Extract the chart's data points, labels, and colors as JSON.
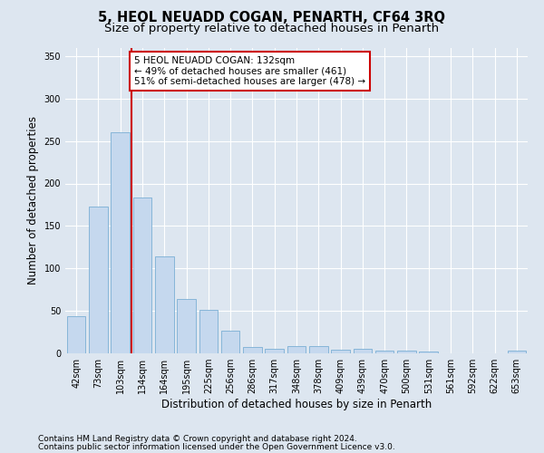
{
  "title": "5, HEOL NEUADD COGAN, PENARTH, CF64 3RQ",
  "subtitle": "Size of property relative to detached houses in Penarth",
  "xlabel": "Distribution of detached houses by size in Penarth",
  "ylabel": "Number of detached properties",
  "categories": [
    "42sqm",
    "73sqm",
    "103sqm",
    "134sqm",
    "164sqm",
    "195sqm",
    "225sqm",
    "256sqm",
    "286sqm",
    "317sqm",
    "348sqm",
    "378sqm",
    "409sqm",
    "439sqm",
    "470sqm",
    "500sqm",
    "531sqm",
    "561sqm",
    "592sqm",
    "622sqm",
    "653sqm"
  ],
  "values": [
    44,
    173,
    260,
    183,
    114,
    64,
    51,
    27,
    8,
    5,
    9,
    9,
    4,
    5,
    3,
    3,
    2,
    0,
    0,
    0,
    3
  ],
  "bar_color": "#c5d8ee",
  "bar_edge_color": "#7aafd4",
  "vline_x_index": 3,
  "vline_color": "#cc0000",
  "annotation_text": "5 HEOL NEUADD COGAN: 132sqm\n← 49% of detached houses are smaller (461)\n51% of semi-detached houses are larger (478) →",
  "annotation_box_color": "#ffffff",
  "annotation_box_edge": "#cc0000",
  "ylim": [
    0,
    360
  ],
  "yticks": [
    0,
    50,
    100,
    150,
    200,
    250,
    300,
    350
  ],
  "footnote1": "Contains HM Land Registry data © Crown copyright and database right 2024.",
  "footnote2": "Contains public sector information licensed under the Open Government Licence v3.0.",
  "bg_color": "#dde6f0",
  "plot_bg_color": "#dde6f0",
  "title_fontsize": 10.5,
  "subtitle_fontsize": 9.5,
  "tick_fontsize": 7,
  "label_fontsize": 8.5,
  "footnote_fontsize": 6.5
}
